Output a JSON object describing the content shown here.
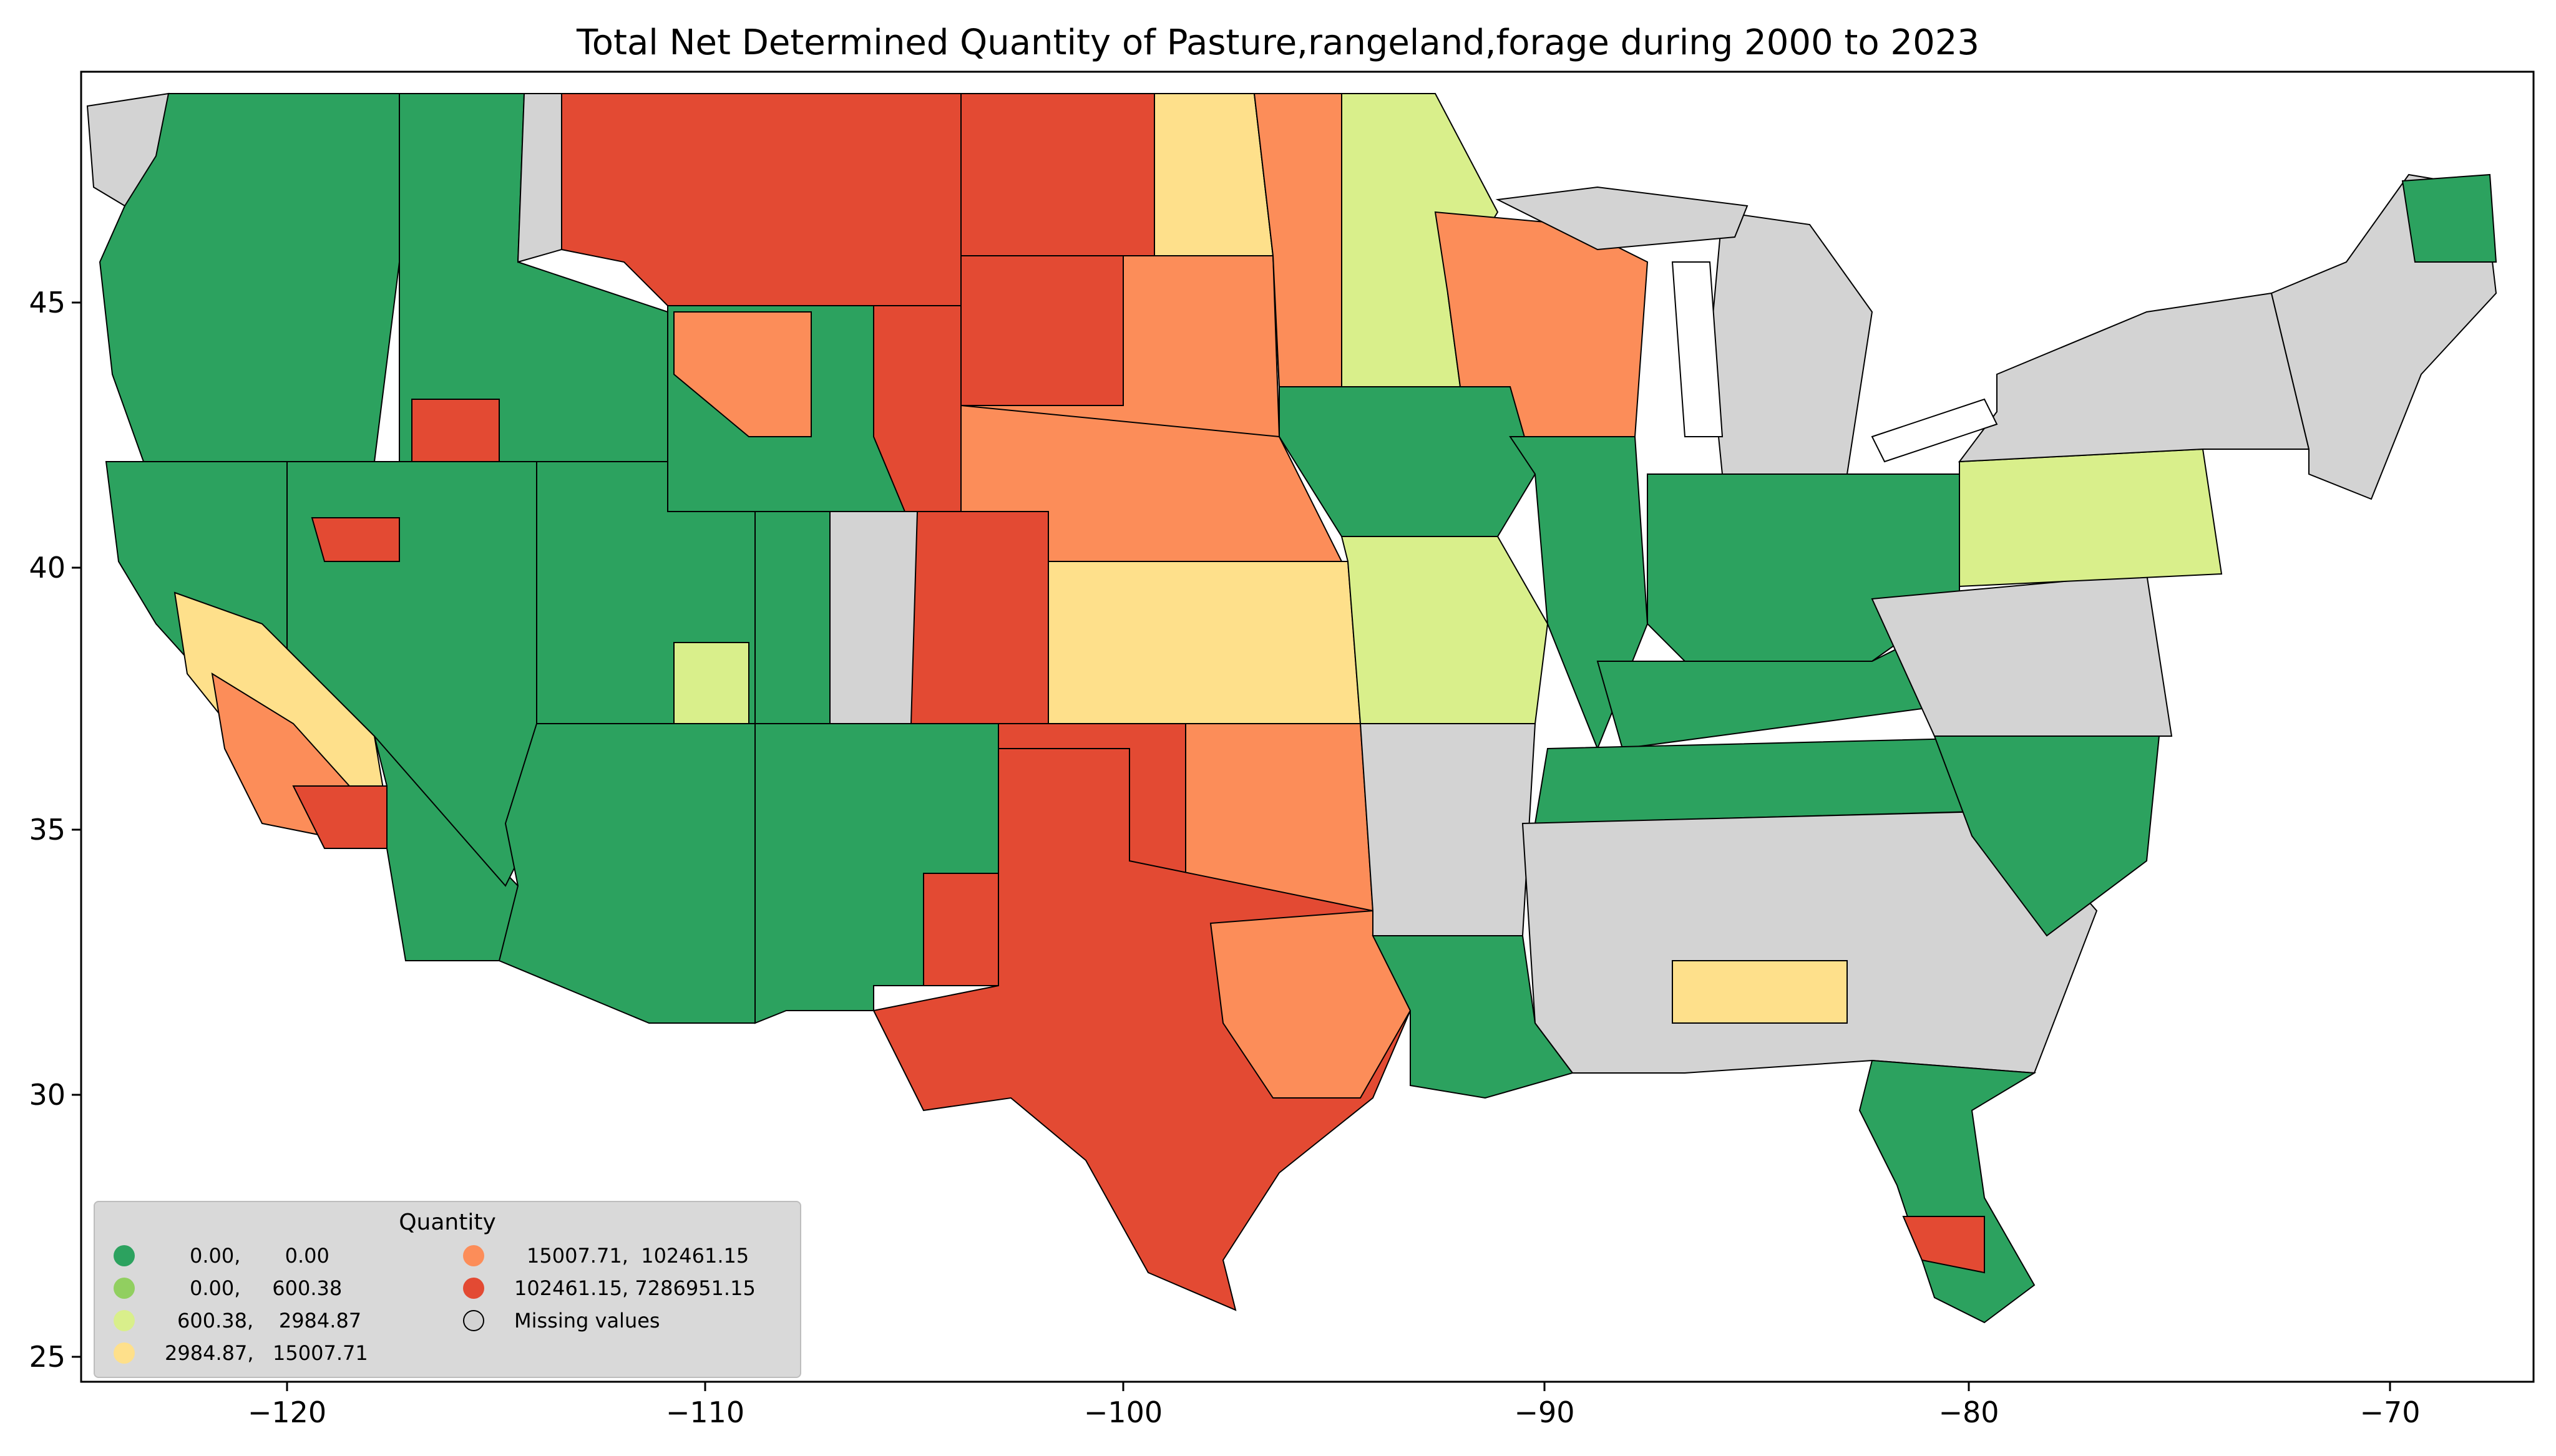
{
  "title": "Total Net Determined Quantity of Pasture,rangeland,forage during 2000 to 2023",
  "axes": {
    "x_ticks": [
      "−120",
      "−110",
      "−100",
      "−90",
      "−80",
      "−70"
    ],
    "y_ticks": [
      "45",
      "40",
      "35",
      "30",
      "25"
    ],
    "xlim": [
      -124.7,
      -66.9
    ],
    "ylim": [
      24.5,
      49.4
    ]
  },
  "legend": {
    "title": "Quantity",
    "placement": "lower-left",
    "items": [
      {
        "label": "0.00,       0.00",
        "color": "#2ca25f"
      },
      {
        "label": "0.00,     600.38",
        "color": "#91cf60"
      },
      {
        "label": "600.38,    2984.87",
        "color": "#d9ef8b"
      },
      {
        "label": "2984.87,   15007.71",
        "color": "#fee08b"
      },
      {
        "label": "15007.71,  102461.15",
        "color": "#fc8d59"
      },
      {
        "label": "102461.15, 7286951.15",
        "color": "#e34a33"
      },
      {
        "label": "Missing values",
        "color": "#d3d3d3"
      }
    ]
  },
  "colors": {
    "class_1": "#2ca25f",
    "class_2": "#91cf60",
    "class_3": "#d9ef8b",
    "class_4": "#fee08b",
    "class_5": "#fc8d59",
    "class_6": "#e34a33",
    "missing": "#d3d3d3"
  }
}
